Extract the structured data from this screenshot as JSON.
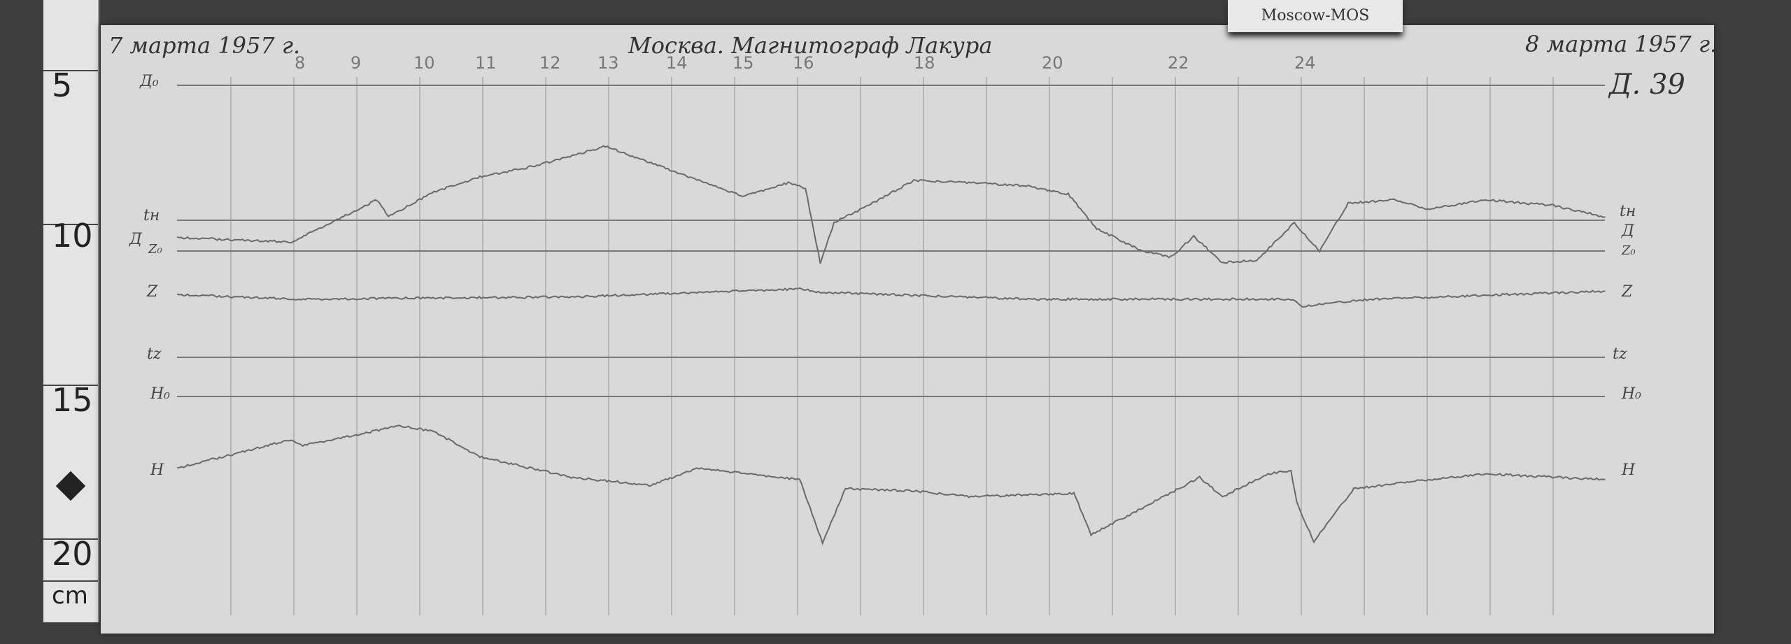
{
  "label_card": "Moscow-MOS",
  "ruler": {
    "marks": [
      "5",
      "10",
      "15",
      "20"
    ],
    "unit": "cm"
  },
  "header": {
    "start_date": "7 марта 1957 г.",
    "title": "Москва. Магнитограф Лакура",
    "end_date": "8 марта 1957 г.",
    "sheet_number": "Д. 39"
  },
  "hour_labels": [
    "8",
    "9",
    "10",
    "11",
    "12",
    "13",
    "14",
    "15",
    "16",
    "18",
    "20",
    "22",
    "24"
  ],
  "baseline_labels": {
    "d0": "Д₀",
    "th": "tн",
    "d": "Д",
    "z0": "Z₀",
    "z": "Z",
    "tz": "tz",
    "h0": "H₀",
    "h": "H"
  },
  "colors": {
    "paper": "#d9d9d9",
    "trace": "#6a6a6a",
    "background": "#3e3e3e"
  }
}
